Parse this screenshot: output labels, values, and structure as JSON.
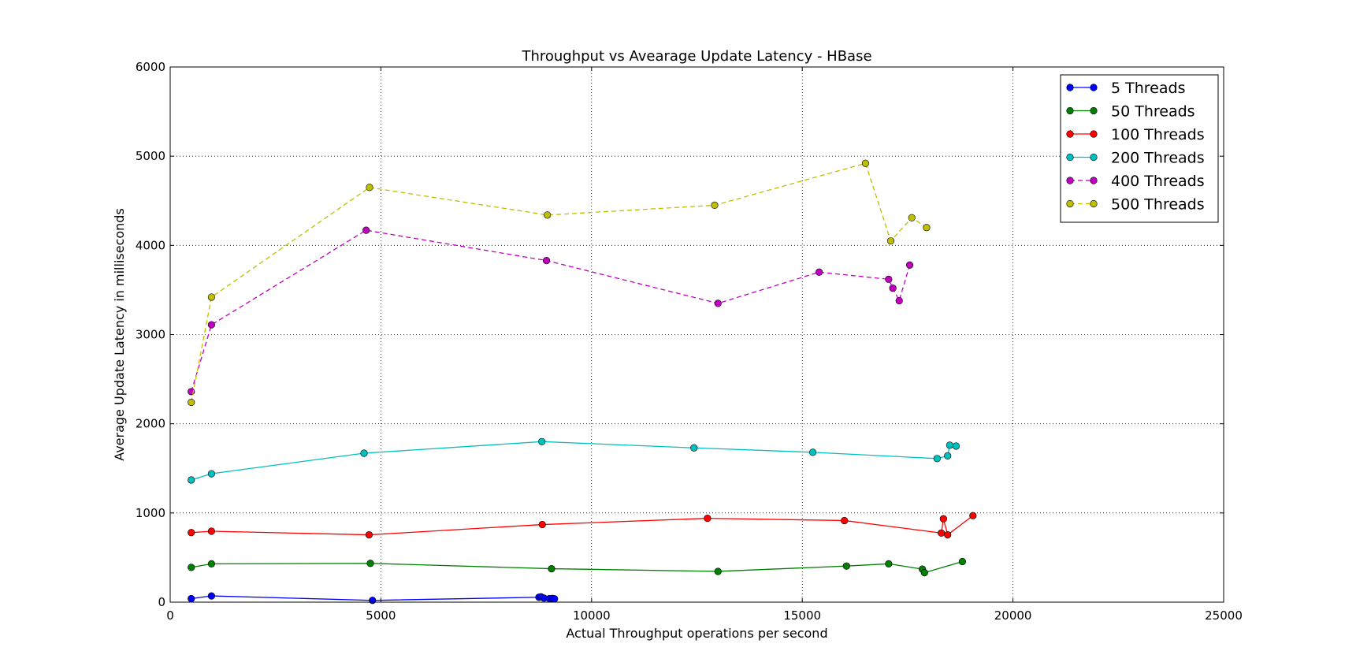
{
  "chart_data": {
    "type": "line",
    "title": "Throughput vs Avearage Update Latency - HBase",
    "xlabel": "Actual Throughput operations per second",
    "ylabel": "Average Update Latency in milliseconds",
    "xlim": [
      0,
      25000
    ],
    "ylim": [
      0,
      6000
    ],
    "xticks": [
      0,
      5000,
      10000,
      15000,
      20000,
      25000
    ],
    "yticks": [
      0,
      1000,
      2000,
      3000,
      4000,
      5000,
      6000
    ],
    "grid": true,
    "legend_position": "top-right",
    "series": [
      {
        "name": "5 Threads",
        "color": "#0000ff",
        "linestyle": "solid",
        "x": [
          500,
          980,
          4800,
          8750,
          8800,
          8870,
          9000,
          9070,
          9120
        ],
        "y": [
          40,
          70,
          20,
          55,
          60,
          45,
          40,
          42,
          38
        ]
      },
      {
        "name": "50 Threads",
        "color": "#008000",
        "linestyle": "solid",
        "x": [
          500,
          980,
          4750,
          9050,
          13000,
          16050,
          17050,
          17850,
          17900,
          18800
        ],
        "y": [
          390,
          430,
          435,
          375,
          345,
          405,
          430,
          370,
          330,
          455
        ]
      },
      {
        "name": "100 Threads",
        "color": "#ff0000",
        "linestyle": "solid",
        "x": [
          500,
          980,
          4720,
          8830,
          12750,
          16000,
          18300,
          18350,
          18450,
          19050
        ],
        "y": [
          780,
          795,
          755,
          870,
          940,
          915,
          775,
          935,
          755,
          970
        ]
      },
      {
        "name": "200 Threads",
        "color": "#00bfbf",
        "linestyle": "solid",
        "x": [
          500,
          980,
          4600,
          8820,
          12430,
          15250,
          18200,
          18450,
          18500,
          18650
        ],
        "y": [
          1370,
          1440,
          1670,
          1800,
          1730,
          1680,
          1610,
          1640,
          1760,
          1750
        ]
      },
      {
        "name": "400 Threads",
        "color": "#bf00bf",
        "linestyle": "dashed",
        "x": [
          500,
          980,
          4650,
          8930,
          13000,
          15400,
          17050,
          17150,
          17300,
          17550
        ],
        "y": [
          2360,
          3110,
          4170,
          3830,
          3350,
          3700,
          3620,
          3520,
          3380,
          3780
        ]
      },
      {
        "name": "500 Threads",
        "color": "#bfbf00",
        "linestyle": "dashed",
        "x": [
          500,
          980,
          4730,
          8950,
          12920,
          16500,
          17100,
          17600,
          17950
        ],
        "y": [
          2240,
          3420,
          4650,
          4340,
          4450,
          4920,
          4050,
          4310,
          4200
        ]
      }
    ]
  }
}
